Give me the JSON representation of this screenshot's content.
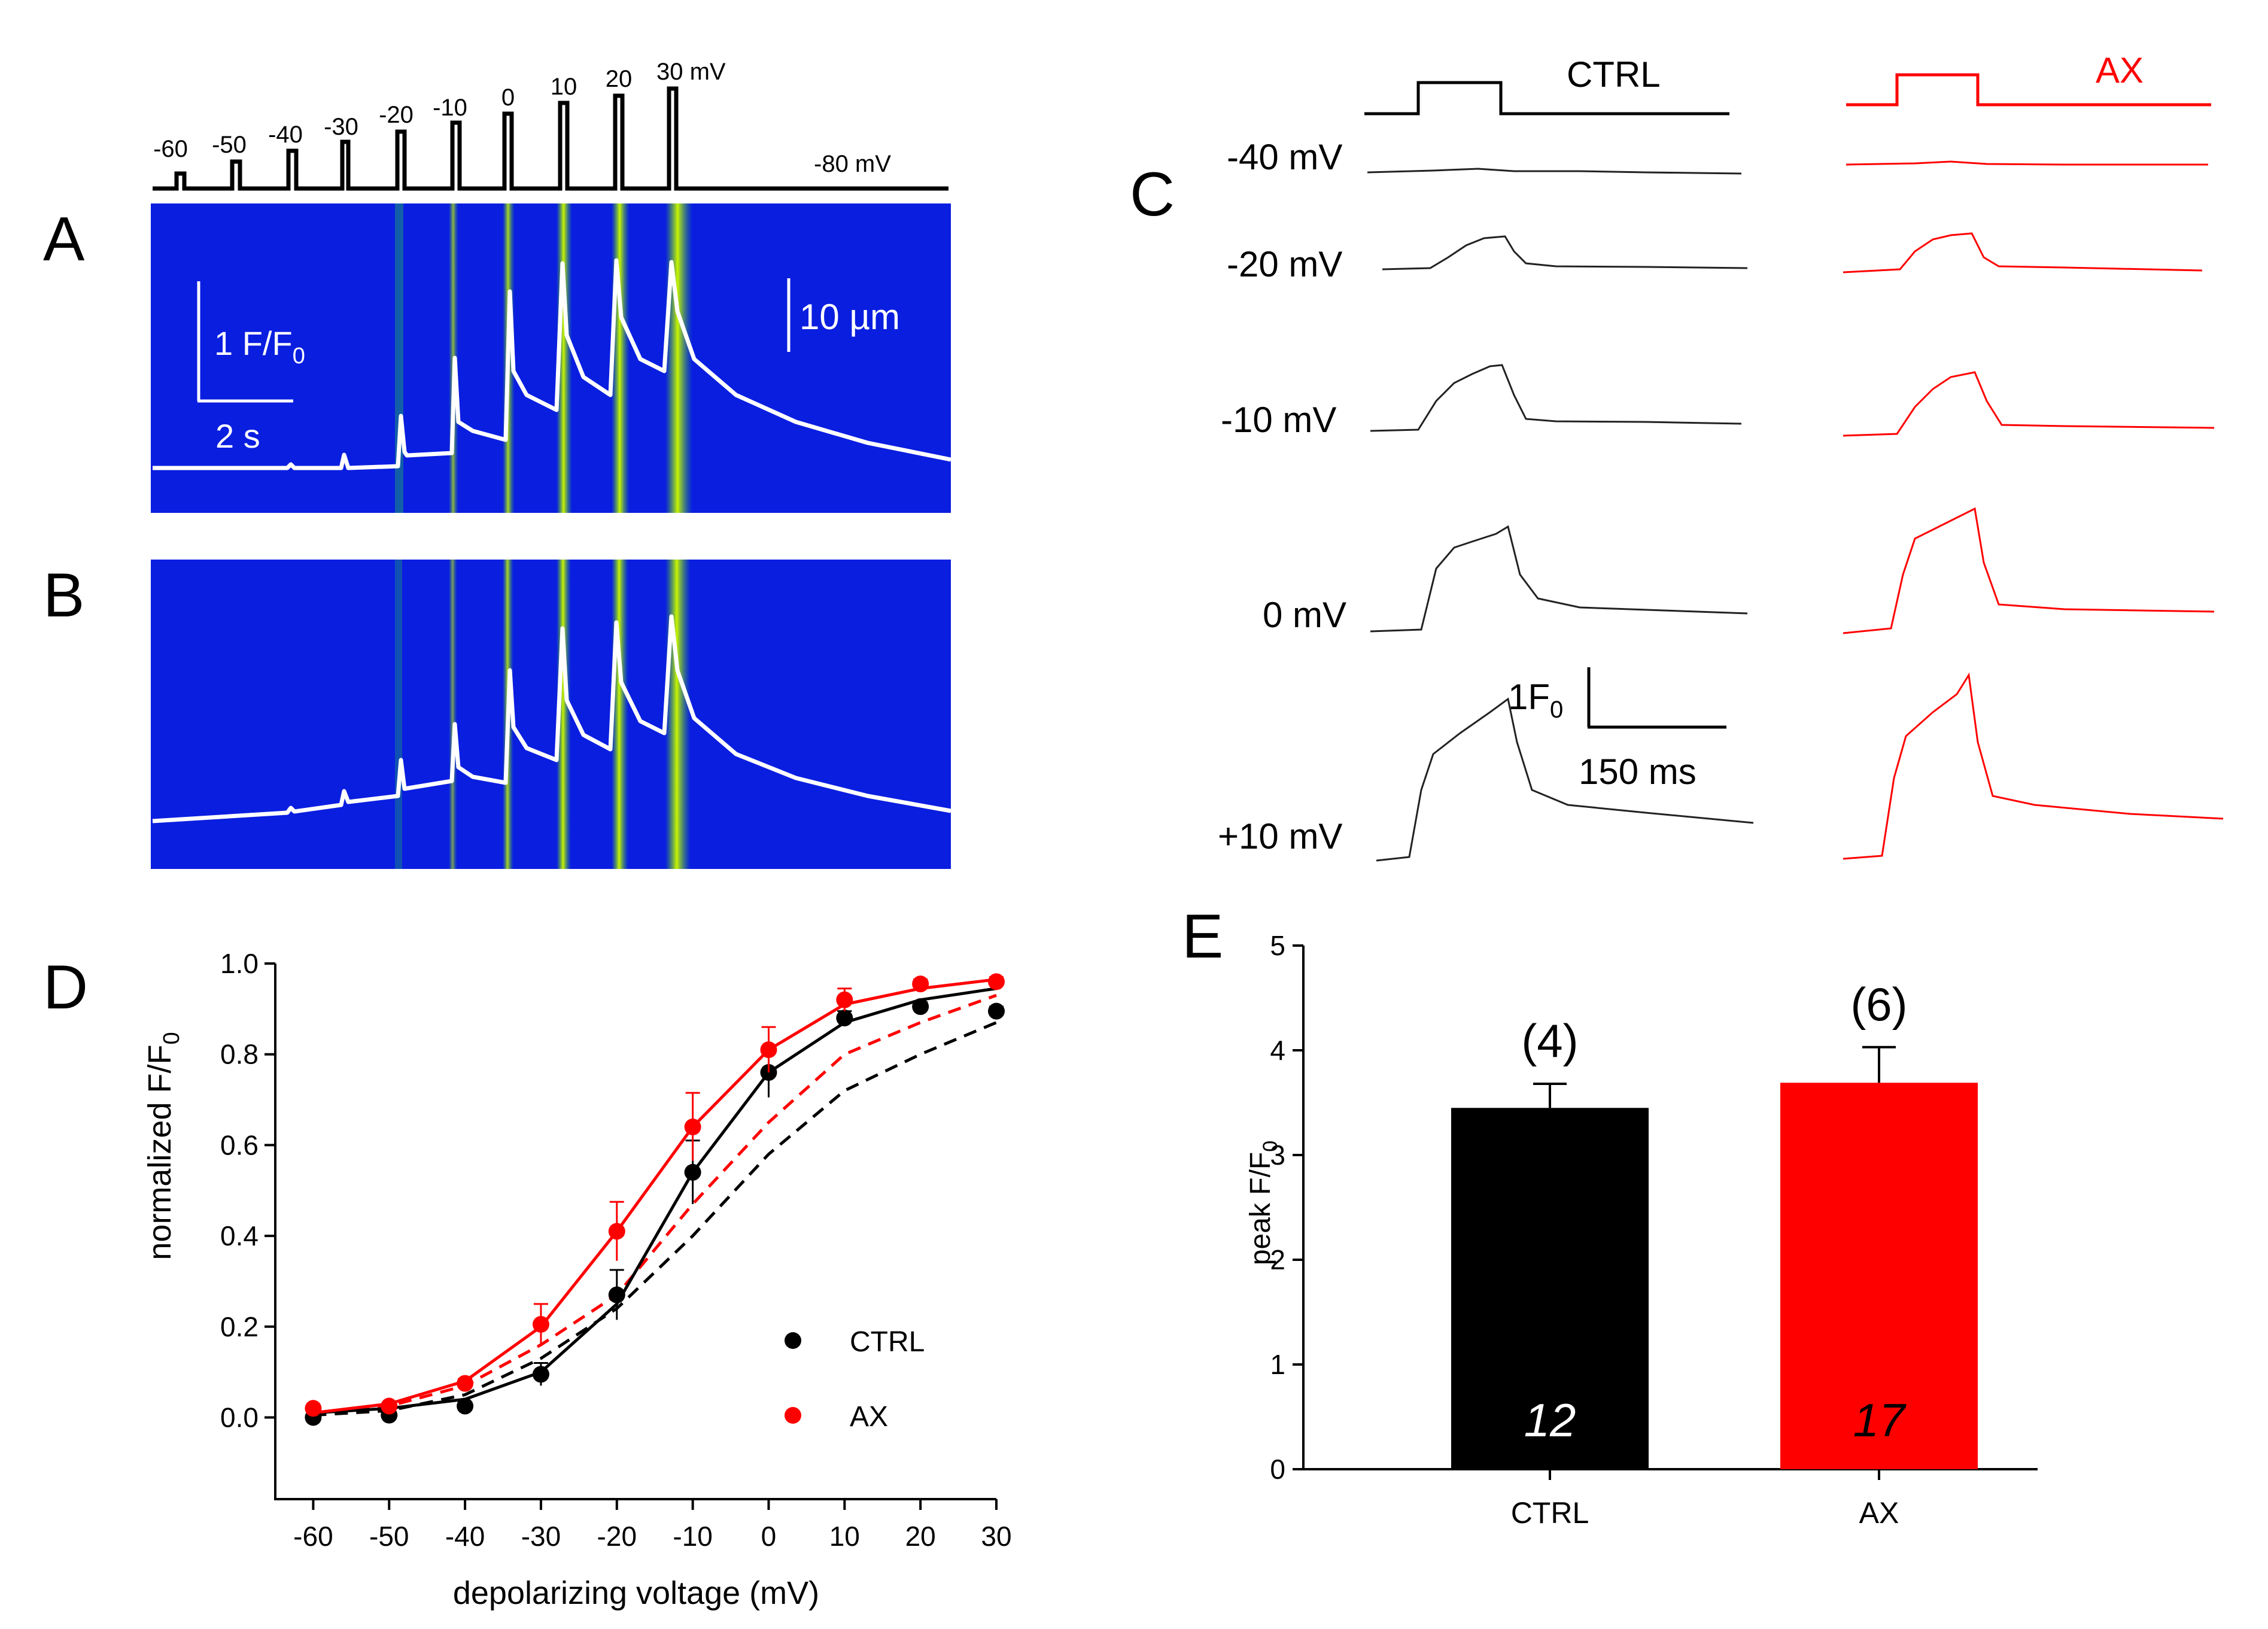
{
  "panel_labels": {
    "a": "A",
    "b": "B",
    "c": "C",
    "d": "D",
    "e": "E"
  },
  "colors": {
    "ctrl": "#000000",
    "ax": "#ff0000",
    "image_bg": "#0a1ee0",
    "trace": "#ffffff"
  },
  "protocol": {
    "step_labels": [
      "-60",
      "-50",
      "-40",
      "-30",
      "-20",
      "-10",
      "0",
      "10",
      "20",
      "30 mV"
    ],
    "holding_label": "-80 mV"
  },
  "panel_a": {
    "scale_f": "1 F/F",
    "scale_f_sub": "0",
    "scale_time": "2 s",
    "scale_space": "10 µm"
  },
  "panel_c": {
    "ctrl_label": "CTRL",
    "ax_label": "AX",
    "voltage_labels": [
      "-40 mV",
      "-20 mV",
      "-10 mV",
      "0 mV",
      "+10 mV"
    ],
    "scale_f": "1F",
    "scale_f_sub": "0",
    "scale_time": "150 ms"
  },
  "chart_data": [
    {
      "panel": "D",
      "type": "line",
      "title": "",
      "xlabel": "depolarizing voltage (mV)",
      "ylabel": "normalized F/F",
      "ylabel_sub": "0",
      "x": [
        -60,
        -50,
        -40,
        -30,
        -20,
        -10,
        0,
        10,
        20,
        30
      ],
      "xlim": [
        -65,
        30
      ],
      "ylim": [
        -0.18,
        1.0
      ],
      "yticks": [
        0.0,
        0.2,
        0.4,
        0.6,
        0.8,
        1.0
      ],
      "ytick_labels": [
        "0.0",
        "0.2",
        "0.4",
        "0.6",
        "0.8",
        "1.0"
      ],
      "xtick_labels": [
        "-60",
        "-50",
        "-40",
        "-30",
        "-20",
        "-10",
        "0",
        "10",
        "20",
        "30"
      ],
      "legend_position": "bottom-right",
      "series": [
        {
          "name": "CTRL",
          "values": [
            0.0,
            0.005,
            0.025,
            0.095,
            0.27,
            0.54,
            0.76,
            0.88,
            0.905,
            0.895
          ],
          "errors": [
            0.005,
            0.005,
            0.008,
            0.025,
            0.055,
            0.07,
            0.055,
            0.015,
            0.01,
            0.01
          ],
          "fit": [
            0.01,
            0.02,
            0.04,
            0.1,
            0.25,
            0.54,
            0.76,
            0.87,
            0.92,
            0.945
          ]
        },
        {
          "name": "AX",
          "values": [
            0.02,
            0.025,
            0.075,
            0.205,
            0.41,
            0.64,
            0.81,
            0.92,
            0.955,
            0.96
          ],
          "errors": [
            0.005,
            0.005,
            0.01,
            0.045,
            0.065,
            0.075,
            0.05,
            0.025,
            0.01,
            0.01
          ],
          "fit": [
            0.01,
            0.03,
            0.08,
            0.2,
            0.41,
            0.64,
            0.81,
            0.91,
            0.945,
            0.965
          ]
        },
        {
          "name": "CTRL-fit-dashed",
          "values": [
            0.005,
            0.015,
            0.05,
            0.13,
            0.24,
            0.4,
            0.58,
            0.72,
            0.8,
            0.87
          ]
        },
        {
          "name": "AX-fit-dashed",
          "values": [
            0.01,
            0.025,
            0.07,
            0.16,
            0.27,
            0.47,
            0.65,
            0.8,
            0.87,
            0.93
          ]
        }
      ]
    },
    {
      "panel": "E",
      "type": "bar",
      "title": "",
      "xlabel": "",
      "ylabel": "peak F/F",
      "ylabel_sub": "0",
      "categories": [
        "CTRL",
        "AX"
      ],
      "values": [
        3.45,
        3.69
      ],
      "errors": [
        0.23,
        0.34
      ],
      "n_cells": [
        "12",
        "17"
      ],
      "n_animals": [
        "(4)",
        "(6)"
      ],
      "ylim": [
        0,
        5
      ],
      "ytick_labels": [
        "0",
        "1",
        "2",
        "3",
        "4",
        "5"
      ]
    }
  ]
}
